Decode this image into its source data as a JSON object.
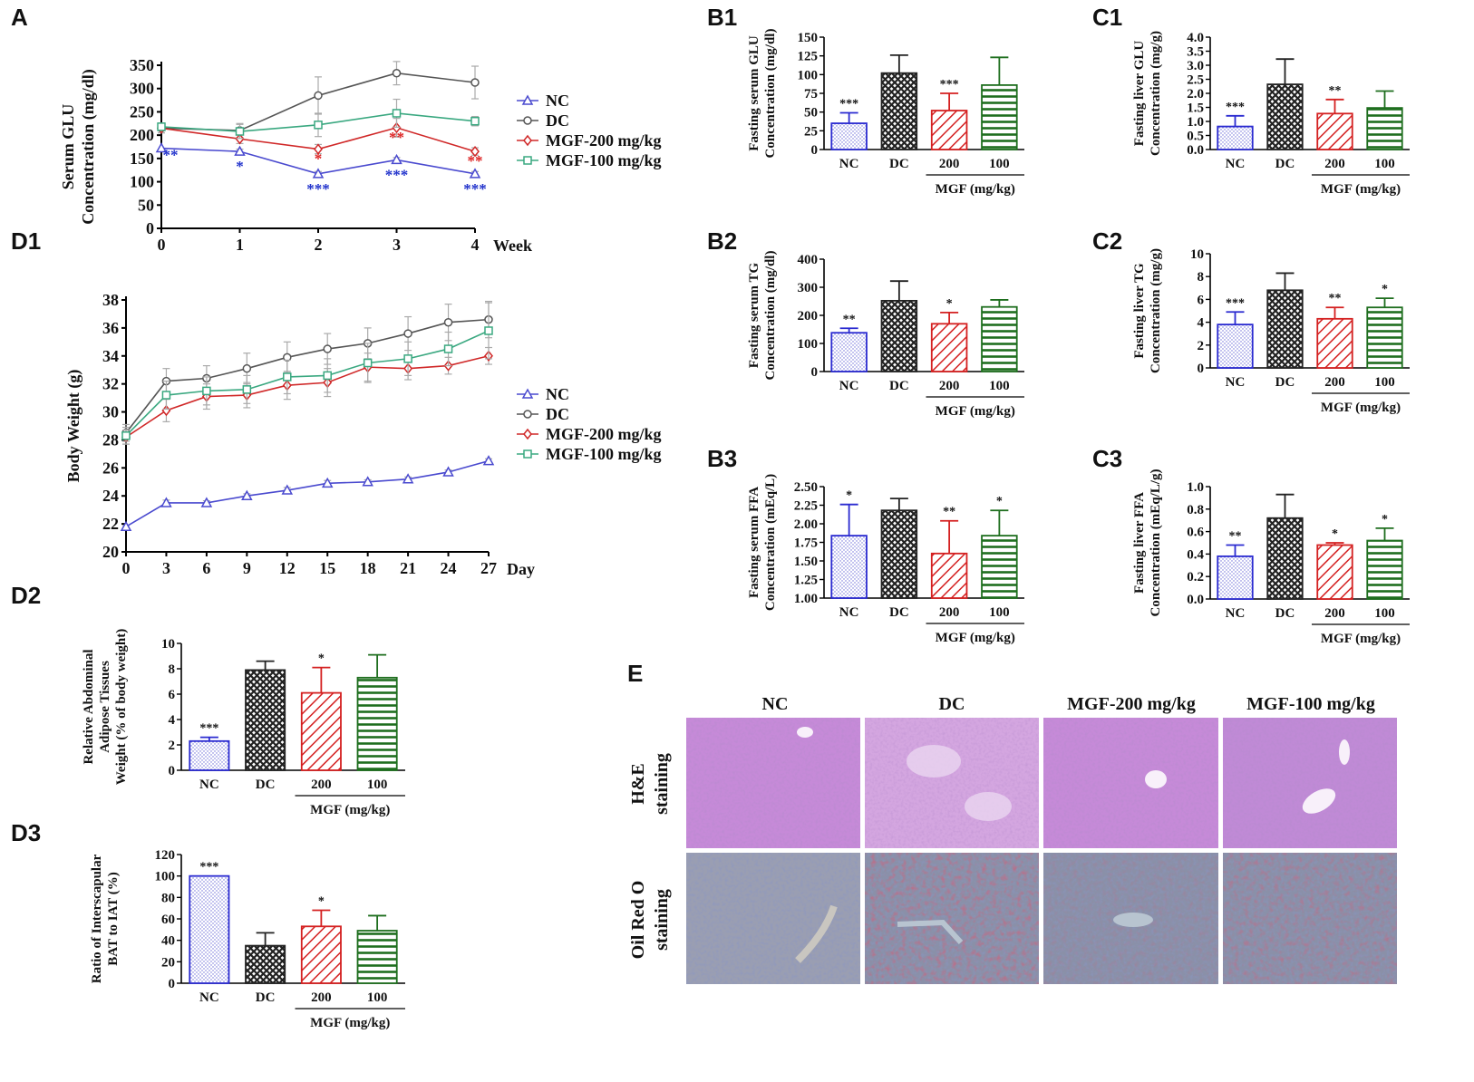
{
  "colors": {
    "NC": "#2a2ad0",
    "DC": "#222222",
    "MGF200": "#d42020",
    "MGF100": "#1e6e1e",
    "line_NC": "#4a4acf",
    "line_DC": "#555555",
    "line_MGF200": "#d02828",
    "line_MGF100": "#3aa880",
    "star_NC": "#2233cc",
    "star_MGF200": "#dd2222",
    "he_bg": "#c68ad8",
    "oro_bg": "#8a90a8"
  },
  "chart_data": [
    {
      "id": "A",
      "panel_label": "A",
      "type": "line",
      "ylabel": [
        "Serum GLU",
        "Concentration (mg/dl)"
      ],
      "xlabel": "Week",
      "x": [
        0,
        1,
        2,
        3,
        4
      ],
      "xlim": [
        0,
        4
      ],
      "ylim": [
        0,
        350
      ],
      "yticks": [
        0,
        50,
        100,
        150,
        200,
        250,
        300,
        350
      ],
      "series": [
        {
          "name": "NC",
          "marker": "triangle",
          "values": [
            172,
            165,
            117,
            147,
            117
          ],
          "errors": [
            0,
            5,
            5,
            5,
            5
          ],
          "stars": [
            "**",
            "*",
            "***",
            "***",
            "***"
          ],
          "star_color": "#2233cc"
        },
        {
          "name": "DC",
          "marker": "circle",
          "values": [
            215,
            210,
            285,
            333,
            313
          ],
          "errors": [
            10,
            15,
            40,
            25,
            35
          ],
          "stars": []
        },
        {
          "name": "MGF-200 mg/kg",
          "marker": "diamond",
          "values": [
            215,
            192,
            170,
            216,
            165
          ],
          "errors": [
            10,
            10,
            10,
            20,
            8
          ],
          "stars": [
            "",
            "",
            "*",
            "**",
            "**"
          ],
          "star_color": "#dd2222"
        },
        {
          "name": "MGF-100 mg/kg",
          "marker": "square",
          "values": [
            218,
            208,
            222,
            247,
            230
          ],
          "errors": [
            8,
            15,
            25,
            30,
            10
          ],
          "stars": []
        }
      ]
    },
    {
      "id": "D1",
      "panel_label": "D1",
      "type": "line",
      "ylabel": [
        "Body Weight (g)"
      ],
      "xlabel": "Day",
      "x": [
        0,
        3,
        6,
        9,
        12,
        15,
        18,
        21,
        24,
        27
      ],
      "xlim": [
        0,
        27
      ],
      "ylim": [
        20,
        38
      ],
      "yticks": [
        20,
        22,
        24,
        26,
        28,
        30,
        32,
        34,
        36,
        38
      ],
      "series": [
        {
          "name": "NC",
          "marker": "triangle",
          "values": [
            21.8,
            23.5,
            23.5,
            24.0,
            24.4,
            24.9,
            25.0,
            25.2,
            25.7,
            26.5
          ],
          "errors": [
            0.1,
            0.2,
            0.15,
            0.15,
            0.2,
            0.2,
            0.15,
            0.15,
            0.15,
            0.15
          ],
          "stars": []
        },
        {
          "name": "DC",
          "marker": "circle",
          "values": [
            28.5,
            32.2,
            32.4,
            33.1,
            33.9,
            34.5,
            34.9,
            35.6,
            36.4,
            36.6
          ],
          "errors": [
            0.6,
            0.9,
            0.9,
            1.1,
            1.1,
            1.1,
            1.1,
            1.2,
            1.3,
            1.3
          ],
          "stars": []
        },
        {
          "name": "MGF-200 mg/kg",
          "marker": "diamond",
          "values": [
            28.2,
            30.1,
            31.1,
            31.2,
            31.9,
            32.1,
            33.2,
            33.1,
            33.3,
            34.0
          ],
          "errors": [
            0.5,
            0.8,
            0.9,
            0.9,
            1.0,
            1.0,
            1.0,
            0.8,
            0.6,
            0.6
          ],
          "stars": []
        },
        {
          "name": "MGF-100 mg/kg",
          "marker": "square",
          "values": [
            28.3,
            31.2,
            31.5,
            31.6,
            32.5,
            32.6,
            33.5,
            33.8,
            34.5,
            35.8
          ],
          "errors": [
            0.6,
            1.0,
            1.0,
            1.0,
            1.2,
            1.2,
            1.4,
            1.2,
            1.2,
            2.0
          ],
          "stars": []
        }
      ]
    },
    {
      "id": "B1",
      "panel_label": "B1",
      "type": "bar",
      "ylabel": [
        "Fasting serum GLU",
        "Concentration (mg/dl)"
      ],
      "categories": [
        "NC",
        "DC",
        "200",
        "100"
      ],
      "group_label": "MGF (mg/kg)",
      "values": [
        35,
        102,
        52,
        86
      ],
      "errors": [
        14,
        24,
        23,
        37
      ],
      "stars": [
        "***",
        "",
        "***",
        ""
      ],
      "ylim": [
        0,
        150
      ],
      "yticks": [
        0,
        25,
        50,
        75,
        100,
        125,
        150
      ],
      "tick_labels": [
        "0",
        "25",
        "50",
        "75",
        "100",
        "125",
        "150"
      ]
    },
    {
      "id": "B2",
      "panel_label": "B2",
      "type": "bar",
      "ylabel": [
        "Fasting serum TG",
        "Concentration (mg/dl)"
      ],
      "categories": [
        "NC",
        "DC",
        "200",
        "100"
      ],
      "group_label": "MGF (mg/kg)",
      "values": [
        138,
        252,
        170,
        230
      ],
      "errors": [
        16,
        70,
        40,
        25
      ],
      "stars": [
        "**",
        "",
        "*",
        ""
      ],
      "ylim": [
        0,
        400
      ],
      "yticks": [
        0,
        100,
        200,
        300,
        400
      ],
      "tick_labels": [
        "0",
        "100",
        "200",
        "300",
        "400"
      ]
    },
    {
      "id": "B3",
      "panel_label": "B3",
      "type": "bar",
      "ylabel": [
        "Fasting serum FFA",
        "Concentration (mEq/L)"
      ],
      "categories": [
        "NC",
        "DC",
        "200",
        "100"
      ],
      "group_label": "MGF (mg/kg)",
      "values": [
        1.84,
        2.18,
        1.6,
        1.84
      ],
      "errors": [
        0.42,
        0.16,
        0.44,
        0.34
      ],
      "stars": [
        "*",
        "",
        "**",
        "*"
      ],
      "ylim": [
        1.0,
        2.5
      ],
      "yticks": [
        1.0,
        1.25,
        1.5,
        1.75,
        2.0,
        2.25,
        2.5
      ],
      "tick_labels": [
        "1.00",
        "1.25",
        "1.50",
        "1.75",
        "2.00",
        "2.25",
        "2.50"
      ]
    },
    {
      "id": "C1",
      "panel_label": "C1",
      "type": "bar",
      "ylabel": [
        "Fasting liver GLU",
        "Concentration (mg/g)"
      ],
      "categories": [
        "NC",
        "DC",
        "200",
        "100"
      ],
      "group_label": "MGF (mg/kg)",
      "values": [
        0.82,
        2.32,
        1.28,
        1.48
      ],
      "errors": [
        0.38,
        0.9,
        0.5,
        0.6
      ],
      "stars": [
        "***",
        "",
        "**",
        ""
      ],
      "ylim": [
        0,
        4.0
      ],
      "yticks": [
        0,
        0.5,
        1.0,
        1.5,
        2.0,
        2.5,
        3.0,
        3.5,
        4.0
      ],
      "tick_labels": [
        "0.0",
        "0.5",
        "1.0",
        "1.5",
        "2.0",
        "2.5",
        "3.0",
        "3.5",
        "4.0"
      ]
    },
    {
      "id": "C2",
      "panel_label": "C2",
      "type": "bar",
      "ylabel": [
        "Fasting liver TG",
        "Concentration (mg/g)"
      ],
      "categories": [
        "NC",
        "DC",
        "200",
        "100"
      ],
      "group_label": "MGF (mg/kg)",
      "values": [
        3.8,
        6.8,
        4.3,
        5.3
      ],
      "errors": [
        1.1,
        1.5,
        1.0,
        0.8
      ],
      "stars": [
        "***",
        "",
        "**",
        "*"
      ],
      "ylim": [
        0,
        10
      ],
      "yticks": [
        0,
        2,
        4,
        6,
        8,
        10
      ],
      "tick_labels": [
        "0",
        "2",
        "4",
        "6",
        "8",
        "10"
      ]
    },
    {
      "id": "C3",
      "panel_label": "C3",
      "type": "bar",
      "ylabel": [
        "Fasting liver FFA",
        "Concentration (mEq/L/g)"
      ],
      "categories": [
        "NC",
        "DC",
        "200",
        "100"
      ],
      "group_label": "MGF (mg/kg)",
      "values": [
        0.38,
        0.72,
        0.48,
        0.52
      ],
      "errors": [
        0.1,
        0.21,
        0.02,
        0.11
      ],
      "stars": [
        "**",
        "",
        "*",
        "*"
      ],
      "ylim": [
        0,
        1.0
      ],
      "yticks": [
        0,
        0.2,
        0.4,
        0.6,
        0.8,
        1.0
      ],
      "tick_labels": [
        "0.0",
        "0.2",
        "0.4",
        "0.6",
        "0.8",
        "1.0"
      ]
    },
    {
      "id": "D2",
      "panel_label": "D2",
      "type": "bar",
      "ylabel": [
        "Relative Abdominal",
        "Adipose Tissues",
        "Weight (% of body weight)"
      ],
      "categories": [
        "NC",
        "DC",
        "200",
        "100"
      ],
      "group_label": "MGF (mg/kg)",
      "values": [
        2.3,
        7.9,
        6.1,
        7.3
      ],
      "errors": [
        0.3,
        0.7,
        2.0,
        1.8
      ],
      "stars": [
        "***",
        "",
        "*",
        ""
      ],
      "ylim": [
        0,
        10
      ],
      "yticks": [
        0,
        2,
        4,
        6,
        8,
        10
      ],
      "tick_labels": [
        "0",
        "2",
        "4",
        "6",
        "8",
        "10"
      ]
    },
    {
      "id": "D3",
      "panel_label": "D3",
      "type": "bar",
      "ylabel": [
        "Ratio of Interscapular",
        "BAT to IAT (%)"
      ],
      "categories": [
        "NC",
        "DC",
        "200",
        "100"
      ],
      "group_label": "MGF (mg/kg)",
      "values": [
        100,
        35,
        53,
        49
      ],
      "errors": [
        0,
        12,
        15,
        14
      ],
      "stars": [
        "***",
        "",
        "*",
        ""
      ],
      "ylim": [
        0,
        120
      ],
      "yticks": [
        0,
        20,
        40,
        60,
        80,
        100,
        120
      ],
      "tick_labels": [
        "0",
        "20",
        "40",
        "60",
        "80",
        "100",
        "120"
      ]
    }
  ],
  "panel_e": {
    "label": "E",
    "columns": [
      "NC",
      "DC",
      "MGF-200 mg/kg",
      "MGF-100 mg/kg"
    ],
    "rows": [
      [
        "H&E",
        "staining"
      ],
      [
        "Oil Red O",
        "staining"
      ]
    ]
  }
}
